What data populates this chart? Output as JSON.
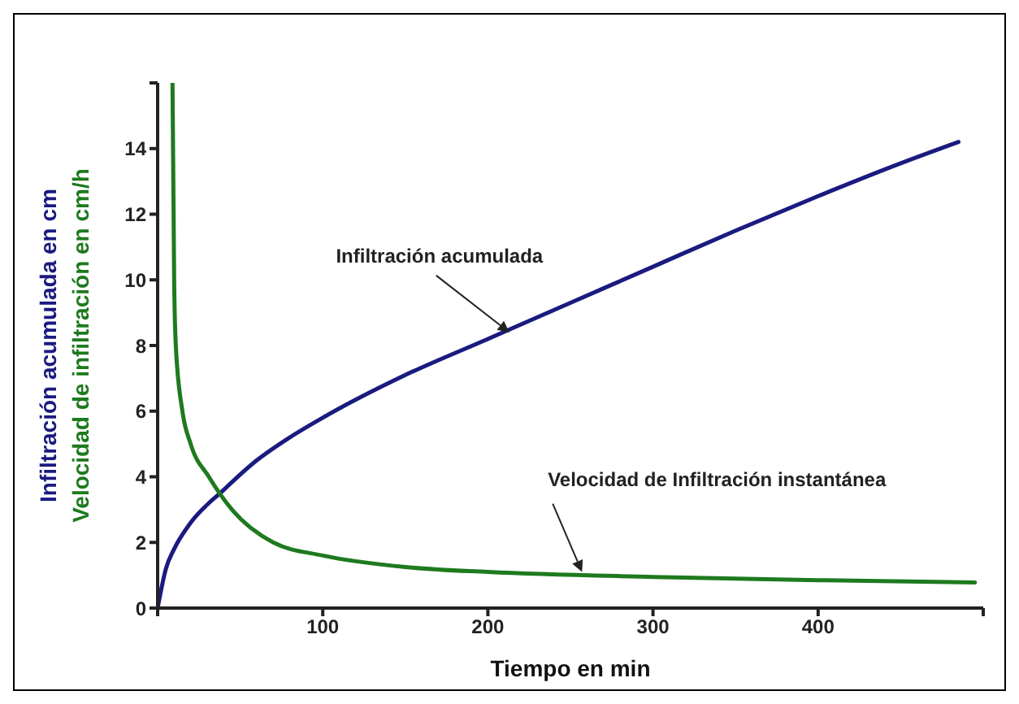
{
  "chart_data": {
    "type": "line",
    "xlabel": "Tiempo en min",
    "ylabel": "Infiltración acumulada en cm",
    "y2label": "Velocidad de infiltración en cm/h",
    "xlim": [
      0,
      500
    ],
    "xticks": [
      {
        "value": 0,
        "label": null
      },
      100,
      200,
      300,
      400,
      {
        "value": 500,
        "label": null
      }
    ],
    "ylim": [
      0,
      16
    ],
    "yticks": [
      0,
      2,
      4,
      6,
      8,
      10,
      12,
      14,
      {
        "value": 16,
        "label": null
      }
    ],
    "marker": "none",
    "line_style": "solid",
    "series": [
      {
        "color": "#1a1a80",
        "x": [
          0,
          5,
          10,
          20,
          40,
          60,
          80,
          100,
          150,
          200,
          250,
          300,
          350,
          400,
          450,
          485
        ],
        "values": [
          0,
          1.2,
          1.8,
          2.6,
          3.6,
          4.5,
          5.2,
          5.8,
          7.1,
          8.2,
          9.3,
          10.4,
          11.5,
          12.55,
          13.55,
          14.2
        ]
      },
      {
        "color": "#1e7a1e",
        "x": [
          9,
          10,
          11,
          15,
          20,
          31,
          45,
          70,
          100,
          150,
          200,
          300,
          400,
          495
        ],
        "values": [
          16,
          10,
          8,
          6,
          5,
          4,
          3,
          2,
          1.6,
          1.25,
          1.1,
          0.95,
          0.85,
          0.78
        ]
      }
    ],
    "annotations": [
      {
        "text": "Infiltración acumulada",
        "x": 213,
        "y": 8.4
      },
      {
        "text": "Velocidad de Infiltración instantánea",
        "x": 257,
        "y": 1.1
      }
    ]
  }
}
